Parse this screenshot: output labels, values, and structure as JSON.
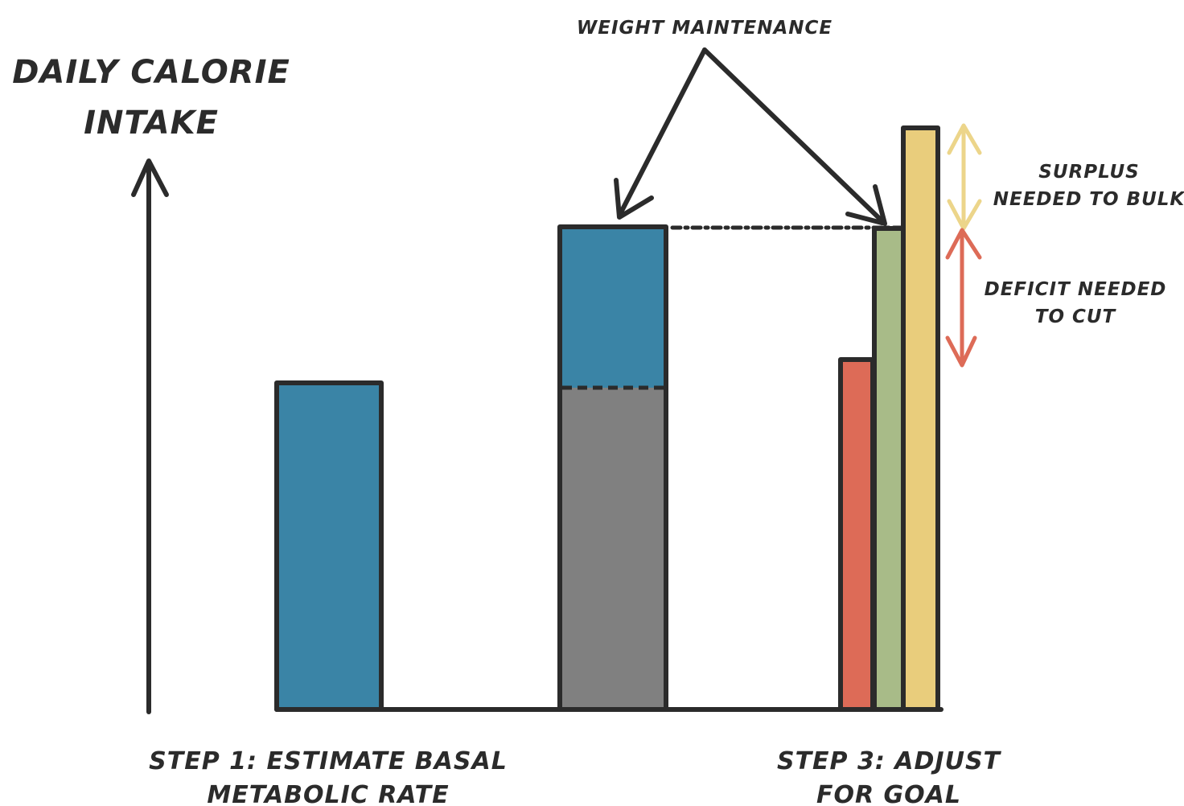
{
  "axis_label": {
    "line1": "DAILY CALORIE",
    "line2": "INTAKE"
  },
  "step1": {
    "line1": "STEP 1: ESTIMATE BASAL",
    "line2": "METABOLIC RATE"
  },
  "step3": {
    "line1": "STEP 3: ADJUST",
    "line2": "FOR GOAL"
  },
  "maintenance_label": "WEIGHT MAINTENANCE",
  "surplus_label": {
    "line1": "SURPLUS",
    "line2": "NEEDED TO BULK"
  },
  "deficit_label": {
    "line1": "DEFICIT NEEDED",
    "line2": "TO CUT"
  },
  "colors": {
    "bmr_blue": "#3a84a6",
    "activity_gray": "#808080",
    "deficit_red": "#dd6b57",
    "maintenance_green": "#a8bb88",
    "surplus_yellow": "#e9cd7c",
    "surplus_arrow": "#ecd58a",
    "deficit_arrow": "#dd6b57",
    "ink": "#2b2b2b"
  }
}
